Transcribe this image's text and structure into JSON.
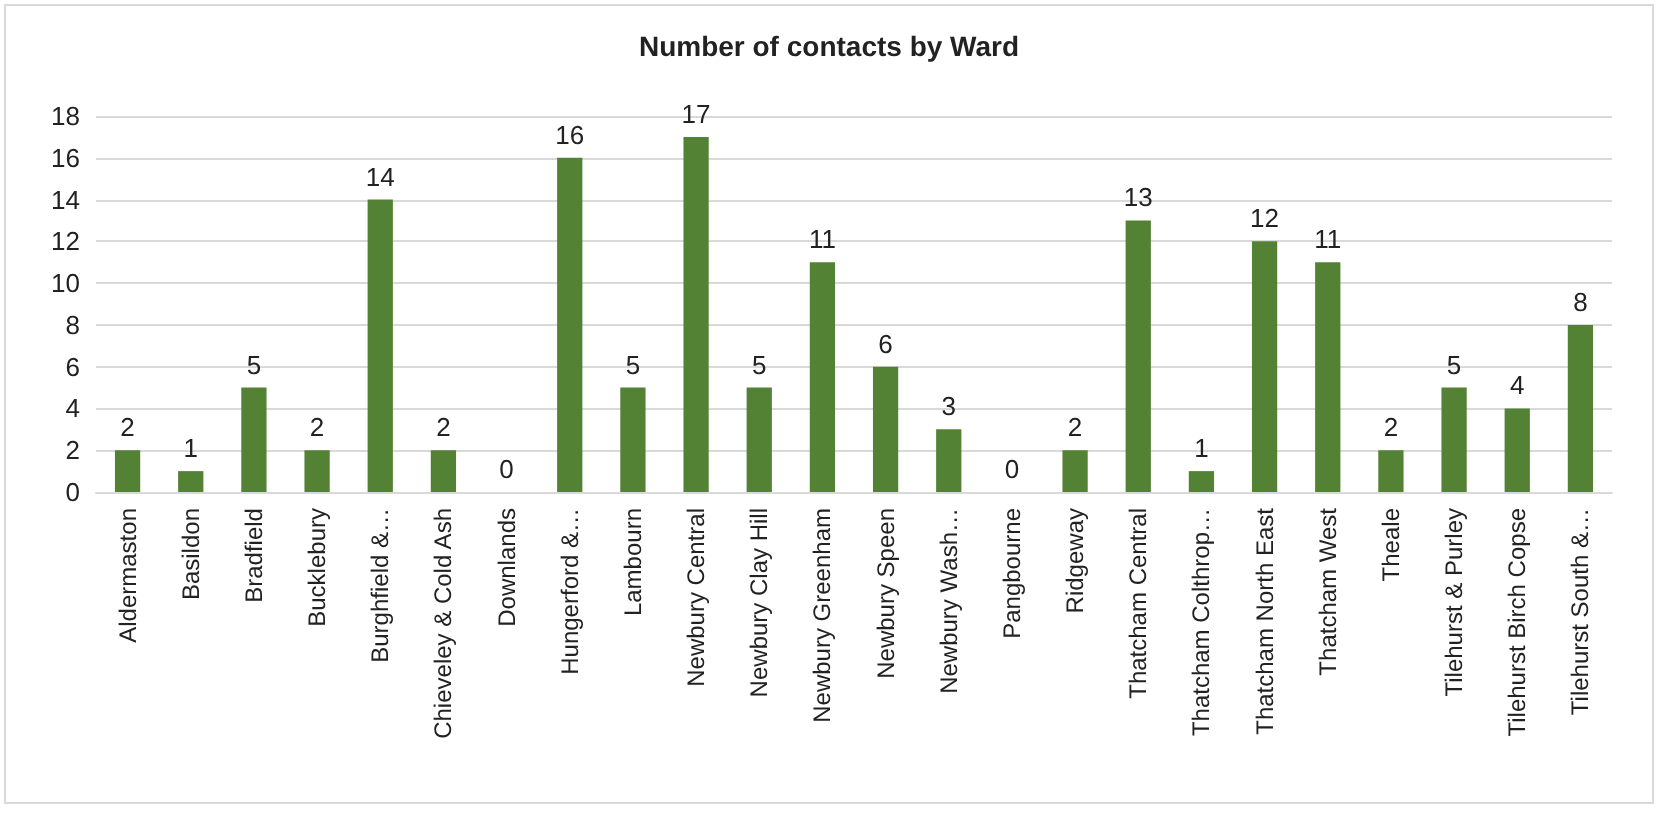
{
  "chart_data": {
    "type": "bar",
    "title": "Number of contacts by Ward",
    "categories": [
      "Aldermaston",
      "Basildon",
      "Bradfield",
      "Bucklebury",
      "Burghfield &…",
      "Chieveley & Cold Ash",
      "Downlands",
      "Hungerford &…",
      "Lambourn",
      "Newbury Central",
      "Newbury Clay Hill",
      "Newbury Greenham",
      "Newbury Speen",
      "Newbury Wash…",
      "Pangbourne",
      "Ridgeway",
      "Thatcham Central",
      "Thatcham Colthrop…",
      "Thatcham North East",
      "Thatcham West",
      "Theale",
      "Tilehurst & Purley",
      "Tilehurst Birch Copse",
      "Tilehurst South &…"
    ],
    "values": [
      2,
      1,
      5,
      2,
      14,
      2,
      0,
      16,
      5,
      17,
      5,
      11,
      6,
      3,
      0,
      2,
      13,
      1,
      12,
      11,
      2,
      5,
      4,
      8
    ],
    "color": "#548235",
    "ylim": [
      0,
      18
    ],
    "yticks": [
      0,
      2,
      4,
      6,
      8,
      10,
      12,
      14,
      16,
      18
    ],
    "grid": "y",
    "data_labels": true
  }
}
